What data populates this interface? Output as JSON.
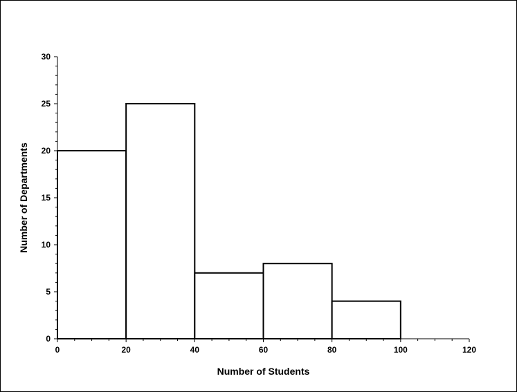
{
  "chart_data": {
    "type": "bar",
    "title": "",
    "xlabel": "Number of Students",
    "ylabel": "Number of Departments",
    "bins": [
      {
        "from": 0,
        "to": 20,
        "value": 20
      },
      {
        "from": 20,
        "to": 40,
        "value": 25
      },
      {
        "from": 40,
        "to": 60,
        "value": 7
      },
      {
        "from": 60,
        "to": 80,
        "value": 8
      },
      {
        "from": 80,
        "to": 100,
        "value": 4
      },
      {
        "from": 100,
        "to": 120,
        "value": 0
      }
    ],
    "xlim": [
      0,
      120
    ],
    "ylim": [
      0,
      30
    ],
    "xticks": [
      "0",
      "20",
      "40",
      "60",
      "80",
      "100",
      "120"
    ],
    "yticks": [
      "0",
      "5",
      "10",
      "15",
      "20",
      "25",
      "30"
    ],
    "grid": false,
    "legend": "none",
    "bar_fill": "#ffffff",
    "bar_stroke": "#000000"
  }
}
